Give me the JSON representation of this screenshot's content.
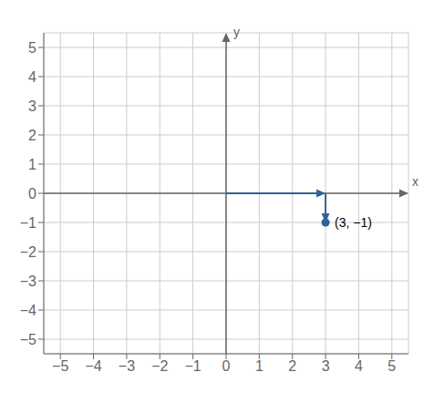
{
  "chart_data": {
    "type": "scatter",
    "xlabel": "x",
    "ylabel": "y",
    "x": [
      3
    ],
    "values": [
      -1
    ],
    "color": "#2e6496",
    "xlim": [
      -5.5,
      5.5
    ],
    "ylim": [
      -5.5,
      5.5
    ],
    "xticks": [
      {
        "value": -5,
        "label": "−5"
      },
      {
        "value": -4,
        "label": "−4"
      },
      {
        "value": -3,
        "label": "−3"
      },
      {
        "value": -2,
        "label": "−2"
      },
      {
        "value": -1,
        "label": "−1"
      },
      0,
      1,
      2,
      3,
      4,
      5
    ],
    "yticks": [
      {
        "value": -5,
        "label": "−5"
      },
      {
        "value": -4,
        "label": "−4"
      },
      {
        "value": -3,
        "label": "−3"
      },
      {
        "value": -2,
        "label": "−2"
      },
      {
        "value": -1,
        "label": "−1"
      },
      0,
      1,
      2,
      3,
      4,
      5
    ],
    "grid": true,
    "annotations": [
      {
        "text": "(3, −1)",
        "x": 3,
        "y": -1
      }
    ],
    "arrows": [
      {
        "start": [
          0,
          0
        ],
        "end": [
          3,
          0
        ]
      },
      {
        "start": [
          3,
          0
        ],
        "end": [
          3,
          -1
        ]
      }
    ]
  }
}
